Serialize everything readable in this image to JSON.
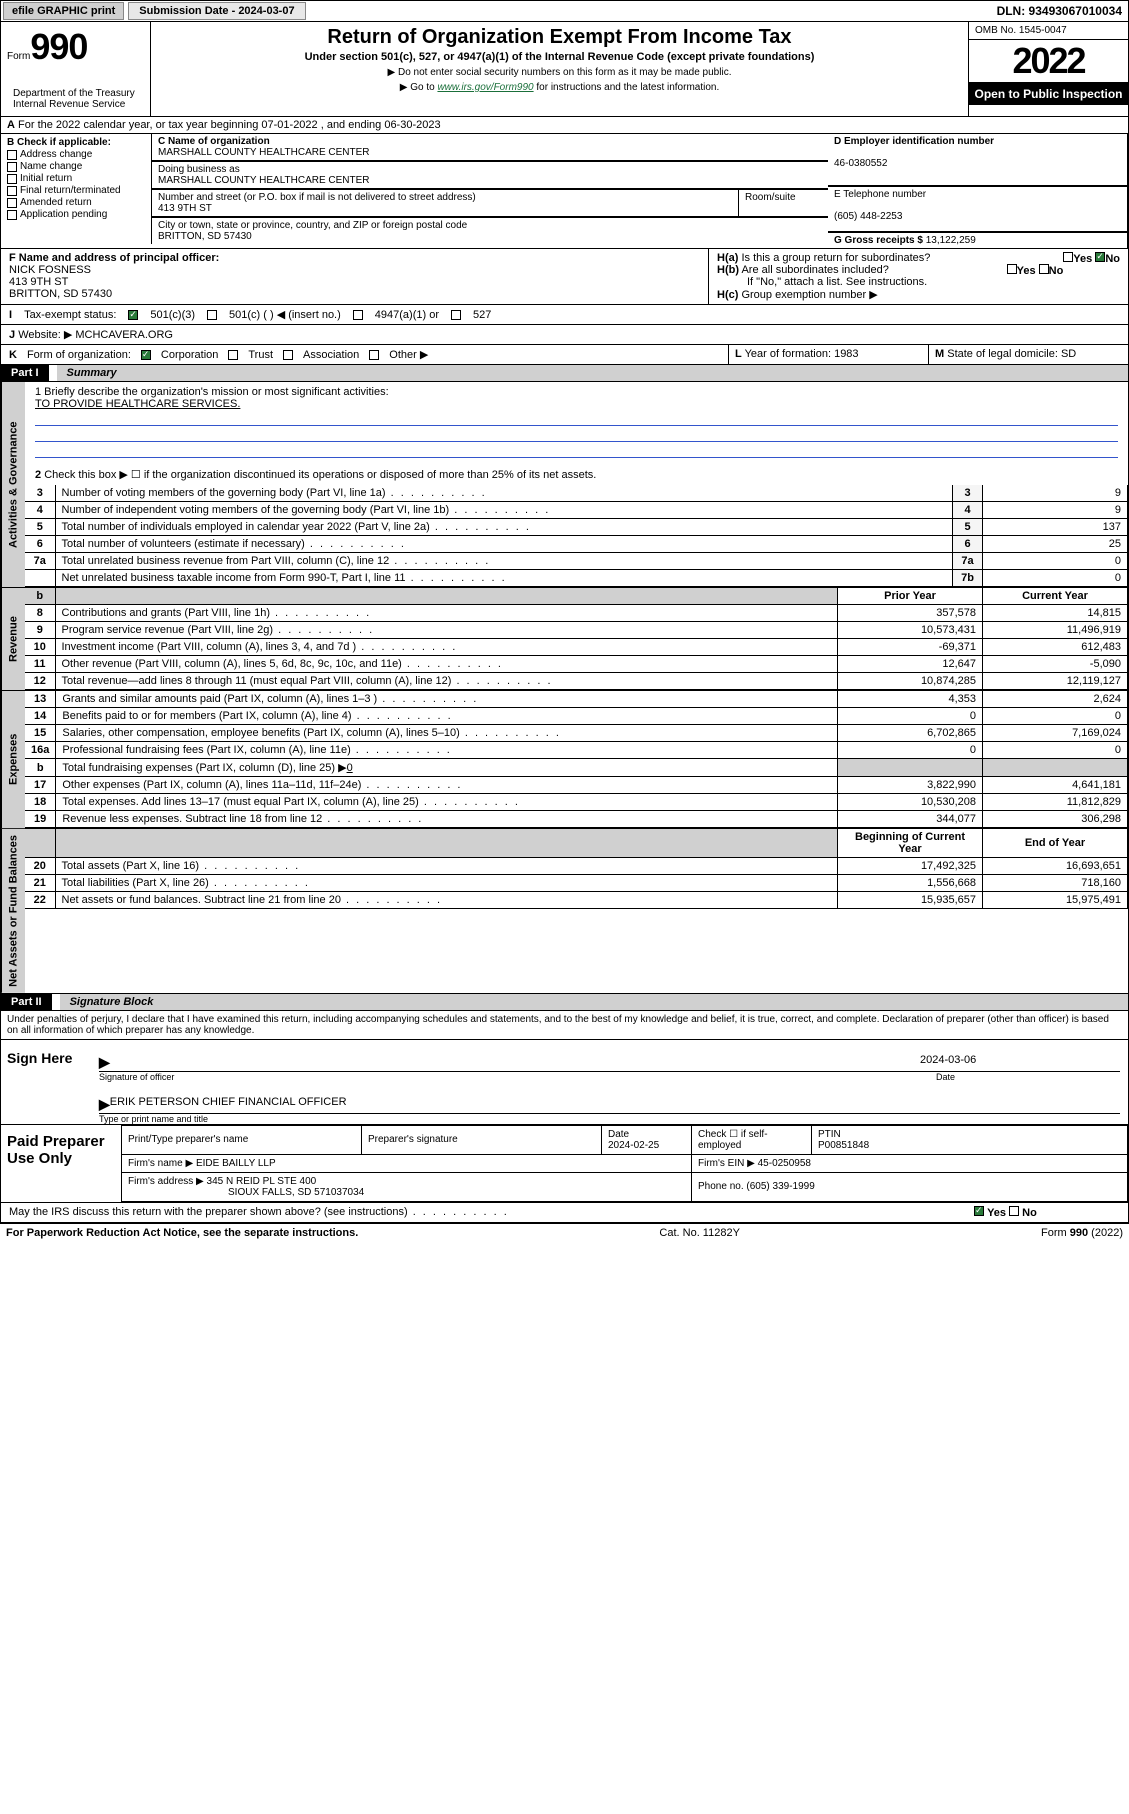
{
  "topbar": {
    "efile_btn": "efile GRAPHIC print",
    "submission_label": "Submission Date - 2024-03-07",
    "dln": "DLN: 93493067010034"
  },
  "header": {
    "form_prefix": "Form",
    "form_number": "990",
    "title": "Return of Organization Exempt From Income Tax",
    "subtitle": "Under section 501(c), 527, or 4947(a)(1) of the Internal Revenue Code (except private foundations)",
    "note1": "▶ Do not enter social security numbers on this form as it may be made public.",
    "note2_prefix": "▶ Go to ",
    "note2_link": "www.irs.gov/Form990",
    "note2_suffix": " for instructions and the latest information.",
    "omb": "OMB No. 1545-0047",
    "year": "2022",
    "open_public": "Open to Public Inspection",
    "dept": "Department of the Treasury\nInternal Revenue Service"
  },
  "line_a": "For the 2022 calendar year, or tax year beginning 07-01-2022   , and ending 06-30-2023",
  "section_b": {
    "label": "B Check if applicable:",
    "opts": [
      "Address change",
      "Name change",
      "Initial return",
      "Final return/terminated",
      "Amended return",
      "Application pending"
    ]
  },
  "org": {
    "name_label": "C Name of organization",
    "name": "MARSHALL COUNTY HEALTHCARE CENTER",
    "dba_label": "Doing business as",
    "dba": "MARSHALL COUNTY HEALTHCARE CENTER",
    "street_label": "Number and street (or P.O. box if mail is not delivered to street address)",
    "room_label": "Room/suite",
    "street": "413 9TH ST",
    "city_label": "City or town, state or province, country, and ZIP or foreign postal code",
    "city": "BRITTON, SD  57430"
  },
  "right_box": {
    "d_label": "D Employer identification number",
    "ein": "46-0380552",
    "e_label": "E Telephone number",
    "phone": "(605) 448-2253",
    "g_label": "G Gross receipts $ ",
    "gross": "13,122,259"
  },
  "officer": {
    "f_label": "F Name and address of principal officer:",
    "name": "NICK FOSNESS",
    "street": "413 9TH ST",
    "city": "BRITTON, SD  57430"
  },
  "h_box": {
    "ha": "Is this a group return for subordinates?",
    "hb": "Are all subordinates included?",
    "hb_note": "If \"No,\" attach a list. See instructions.",
    "hc": "Group exemption number ▶",
    "yes": "Yes",
    "no": "No"
  },
  "tax_status": {
    "i_label": "Tax-exempt status:",
    "opt1": "501(c)(3)",
    "opt2": "501(c) (  ) ◀ (insert no.)",
    "opt3": "4947(a)(1) or",
    "opt4": "527"
  },
  "website": {
    "j_label": "Website: ▶",
    "value": "MCHCAVERA.ORG"
  },
  "k_line": "Form of organization:",
  "k_opts": [
    "Corporation",
    "Trust",
    "Association",
    "Other ▶"
  ],
  "l_line": "Year of formation: 1983",
  "m_line": "State of legal domicile: SD",
  "part1": {
    "label": "Part I",
    "title": "Summary"
  },
  "mission": {
    "prompt": "1  Briefly describe the organization's mission or most significant activities:",
    "text": "TO PROVIDE HEALTHCARE SERVICES."
  },
  "line2": "Check this box ▶ ☐  if the organization discontinued its operations or disposed of more than 25% of its net assets.",
  "gov_rows": [
    {
      "n": "3",
      "t": "Number of voting members of the governing body (Part VI, line 1a)",
      "k": "3",
      "v": "9"
    },
    {
      "n": "4",
      "t": "Number of independent voting members of the governing body (Part VI, line 1b)",
      "k": "4",
      "v": "9"
    },
    {
      "n": "5",
      "t": "Total number of individuals employed in calendar year 2022 (Part V, line 2a)",
      "k": "5",
      "v": "137"
    },
    {
      "n": "6",
      "t": "Total number of volunteers (estimate if necessary)",
      "k": "6",
      "v": "25"
    },
    {
      "n": "7a",
      "t": "Total unrelated business revenue from Part VIII, column (C), line 12",
      "k": "7a",
      "v": "0"
    },
    {
      "n": "",
      "t": "Net unrelated business taxable income from Form 990-T, Part I, line 11",
      "k": "7b",
      "v": "0"
    }
  ],
  "col_headers": {
    "prior": "Prior Year",
    "current": "Current Year"
  },
  "rev_rows": [
    {
      "n": "8",
      "t": "Contributions and grants (Part VIII, line 1h)",
      "p": "357,578",
      "c": "14,815"
    },
    {
      "n": "9",
      "t": "Program service revenue (Part VIII, line 2g)",
      "p": "10,573,431",
      "c": "11,496,919"
    },
    {
      "n": "10",
      "t": "Investment income (Part VIII, column (A), lines 3, 4, and 7d )",
      "p": "-69,371",
      "c": "612,483"
    },
    {
      "n": "11",
      "t": "Other revenue (Part VIII, column (A), lines 5, 6d, 8c, 9c, 10c, and 11e)",
      "p": "12,647",
      "c": "-5,090"
    },
    {
      "n": "12",
      "t": "Total revenue—add lines 8 through 11 (must equal Part VIII, column (A), line 12)",
      "p": "10,874,285",
      "c": "12,119,127"
    }
  ],
  "exp_rows": [
    {
      "n": "13",
      "t": "Grants and similar amounts paid (Part IX, column (A), lines 1–3 )",
      "p": "4,353",
      "c": "2,624"
    },
    {
      "n": "14",
      "t": "Benefits paid to or for members (Part IX, column (A), line 4)",
      "p": "0",
      "c": "0"
    },
    {
      "n": "15",
      "t": "Salaries, other compensation, employee benefits (Part IX, column (A), lines 5–10)",
      "p": "6,702,865",
      "c": "7,169,024"
    },
    {
      "n": "16a",
      "t": "Professional fundraising fees (Part IX, column (A), line 11e)",
      "p": "0",
      "c": "0"
    }
  ],
  "exp_b": {
    "n": "b",
    "t": "Total fundraising expenses (Part IX, column (D), line 25) ▶",
    "v": "0"
  },
  "exp_rows2": [
    {
      "n": "17",
      "t": "Other expenses (Part IX, column (A), lines 11a–11d, 11f–24e)",
      "p": "3,822,990",
      "c": "4,641,181"
    },
    {
      "n": "18",
      "t": "Total expenses. Add lines 13–17 (must equal Part IX, column (A), line 25)",
      "p": "10,530,208",
      "c": "11,812,829"
    },
    {
      "n": "19",
      "t": "Revenue less expenses. Subtract line 18 from line 12",
      "p": "344,077",
      "c": "306,298"
    }
  ],
  "bal_headers": {
    "begin": "Beginning of Current Year",
    "end": "End of Year"
  },
  "bal_rows": [
    {
      "n": "20",
      "t": "Total assets (Part X, line 16)",
      "p": "17,492,325",
      "c": "16,693,651"
    },
    {
      "n": "21",
      "t": "Total liabilities (Part X, line 26)",
      "p": "1,556,668",
      "c": "718,160"
    },
    {
      "n": "22",
      "t": "Net assets or fund balances. Subtract line 21 from line 20",
      "p": "15,935,657",
      "c": "15,975,491"
    }
  ],
  "part2": {
    "label": "Part II",
    "title": "Signature Block"
  },
  "penalties": "Under penalties of perjury, I declare that I have examined this return, including accompanying schedules and statements, and to the best of my knowledge and belief, it is true, correct, and complete. Declaration of preparer (other than officer) is based on all information of which preparer has any knowledge.",
  "sign": {
    "here": "Sign Here",
    "date": "2024-03-06",
    "sig_label": "Signature of officer",
    "date_label": "Date",
    "name": "ERIK PETERSON  CHIEF FINANCIAL OFFICER",
    "name_label": "Type or print name and title"
  },
  "paid": {
    "title": "Paid Preparer Use Only",
    "h1": "Print/Type preparer's name",
    "h2": "Preparer's signature",
    "h3": "Date",
    "date": "2024-02-25",
    "h4": "Check ☐ if self-employed",
    "h5": "PTIN",
    "ptin": "P00851848",
    "firm_label": "Firm's name    ▶",
    "firm": "EIDE BAILLY LLP",
    "ein_label": "Firm's EIN ▶",
    "ein": "45-0250958",
    "addr_label": "Firm's address ▶",
    "addr1": "345 N REID PL STE 400",
    "addr2": "SIOUX FALLS, SD  571037034",
    "phone_label": "Phone no.",
    "phone": "(605) 339-1999"
  },
  "may_irs": "May the IRS discuss this return with the preparer shown above? (see instructions)",
  "footer": {
    "left": "For Paperwork Reduction Act Notice, see the separate instructions.",
    "mid": "Cat. No. 11282Y",
    "right": "Form 990 (2022)"
  }
}
